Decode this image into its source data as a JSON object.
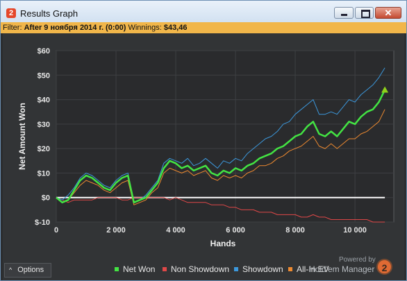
{
  "window": {
    "title": "Results Graph",
    "logo_text": "2"
  },
  "filter": {
    "label": "Filter:",
    "value": "After 9 ноября 2014 г. (0:00)",
    "winnings_label": "Winnings:",
    "winnings_value": "$43,46"
  },
  "options": {
    "label": "Options"
  },
  "footer": {
    "powered_by": "Powered by",
    "brand_text": "Hold'em Manager",
    "badge_text": "2"
  },
  "colors": {
    "net_won": "#43e443",
    "non_showdown": "#e04848",
    "showdown": "#3c98dc",
    "all_in_ev": "#ee8a30",
    "zero_line": "#ffffff",
    "arrow": "#8fd11a"
  },
  "chart_data": {
    "type": "line",
    "xlabel": "Hands",
    "ylabel": "Net Amount Won",
    "xlim": [
      0,
      11300
    ],
    "ylim": [
      -10,
      60
    ],
    "xticks": [
      0,
      2000,
      4000,
      6000,
      8000,
      10000
    ],
    "xtick_labels": [
      "0",
      "2 000",
      "4 000",
      "6 000",
      "8 000",
      "10 000"
    ],
    "yticks": [
      -10,
      0,
      10,
      20,
      30,
      40,
      50,
      60
    ],
    "ytick_labels": [
      "$-10",
      "$0",
      "$10",
      "$20",
      "$30",
      "$40",
      "$50",
      "$60"
    ],
    "grid": true,
    "legend_position": "bottom-right",
    "x": [
      0,
      200,
      400,
      600,
      800,
      1000,
      1200,
      1400,
      1600,
      1800,
      2000,
      2200,
      2400,
      2600,
      2800,
      3000,
      3200,
      3400,
      3600,
      3800,
      4000,
      4200,
      4400,
      4600,
      4800,
      5000,
      5200,
      5400,
      5600,
      5800,
      6000,
      6200,
      6400,
      6600,
      6800,
      7000,
      7200,
      7400,
      7600,
      7800,
      8000,
      8200,
      8400,
      8600,
      8800,
      9000,
      9200,
      9400,
      9600,
      9800,
      10000,
      10200,
      10400,
      10600,
      10800,
      11000
    ],
    "series": [
      {
        "name": "Net Won",
        "values": [
          0,
          -2,
          -1,
          3,
          7,
          9,
          8,
          6,
          4,
          3,
          6,
          8,
          9,
          -2,
          -1,
          0,
          3,
          6,
          12,
          15,
          14,
          12,
          13,
          11,
          12,
          13,
          10,
          9,
          11,
          10,
          12,
          11,
          13,
          14,
          16,
          17,
          18,
          20,
          21,
          23,
          25,
          26,
          29,
          31,
          26,
          25,
          27,
          25,
          28,
          31,
          30,
          33,
          35,
          36,
          39,
          44
        ]
      },
      {
        "name": "Non Showdown",
        "values": [
          0,
          -1,
          -2,
          -1,
          -1,
          -1,
          -1,
          0,
          0,
          0,
          0,
          -1,
          -1,
          0,
          0,
          0,
          0,
          0,
          0,
          -1,
          0,
          -1,
          -2,
          -2,
          -2,
          -2,
          -3,
          -3,
          -3,
          -4,
          -4,
          -5,
          -5,
          -5,
          -6,
          -6,
          -6,
          -7,
          -7,
          -7,
          -7,
          -8,
          -8,
          -7,
          -8,
          -8,
          -9,
          -9,
          -9,
          -9,
          -9,
          -9,
          -9,
          -10,
          -10,
          -10
        ]
      },
      {
        "name": "Showdown",
        "values": [
          0,
          -1,
          1,
          4,
          8,
          10,
          9,
          7,
          5,
          4,
          7,
          9,
          10,
          -2,
          -1,
          1,
          4,
          7,
          14,
          16,
          15,
          14,
          16,
          13,
          14,
          16,
          14,
          12,
          15,
          14,
          16,
          15,
          18,
          20,
          22,
          24,
          25,
          27,
          30,
          31,
          34,
          36,
          38,
          40,
          34,
          34,
          35,
          34,
          37,
          40,
          39,
          42,
          44,
          46,
          49,
          53
        ]
      },
      {
        "name": "All-In EV",
        "values": [
          0,
          -2,
          -1,
          2,
          5,
          7,
          6,
          5,
          3,
          2,
          4,
          6,
          7,
          -3,
          -2,
          -1,
          2,
          4,
          10,
          12,
          11,
          10,
          11,
          9,
          10,
          11,
          8,
          7,
          9,
          8,
          9,
          8,
          10,
          11,
          13,
          13,
          14,
          16,
          17,
          19,
          20,
          21,
          23,
          25,
          21,
          20,
          22,
          20,
          22,
          24,
          24,
          26,
          27,
          29,
          31,
          36
        ]
      }
    ]
  }
}
